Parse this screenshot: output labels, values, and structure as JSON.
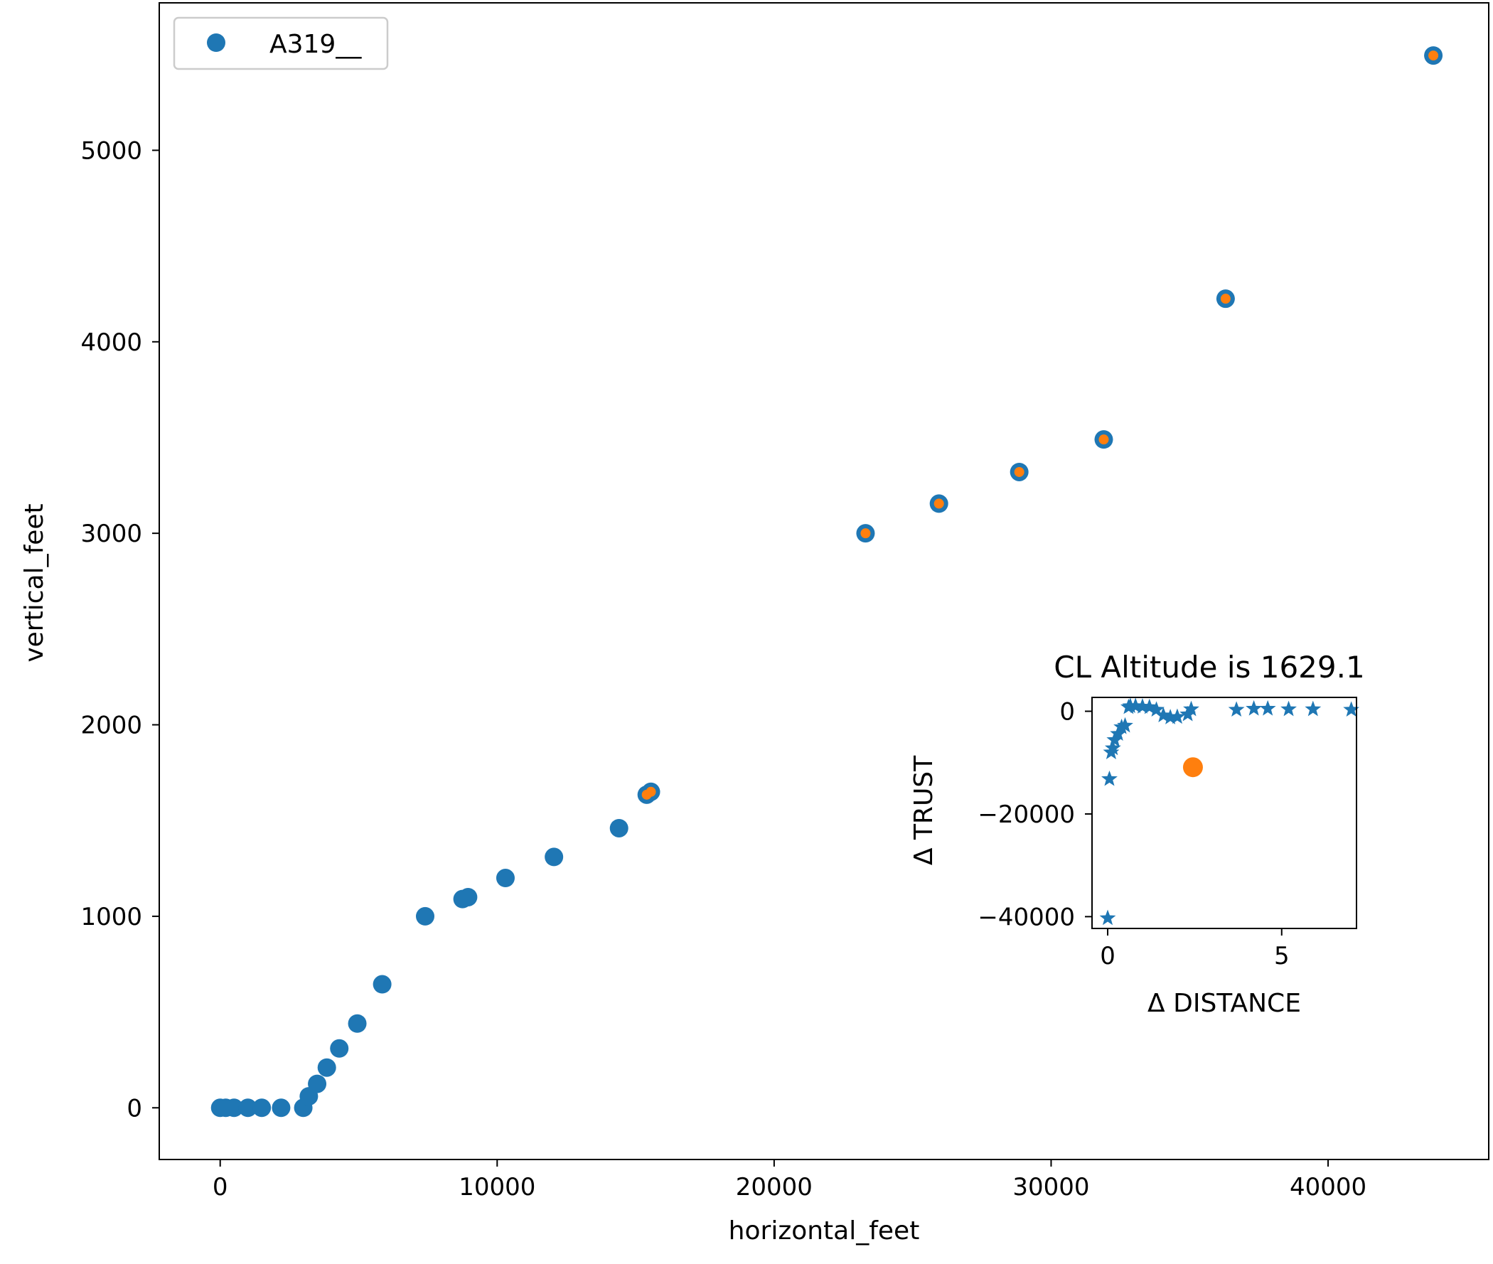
{
  "colors": {
    "series": "#1f77b4",
    "highlight": "#ff7f0e",
    "axis": "#000000",
    "legend_border": "#cccccc"
  },
  "chart_data": [
    {
      "type": "scatter",
      "xlabel": "horizontal_feet",
      "ylabel": "vertical_feet",
      "xlim": [
        -2200,
        45800
      ],
      "ylim": [
        -270,
        5770
      ],
      "xticks": [
        0,
        10000,
        20000,
        30000,
        40000
      ],
      "yticks": [
        0,
        1000,
        2000,
        3000,
        4000,
        5000
      ],
      "grid": false,
      "legend": {
        "location": "upper-left",
        "entries": [
          {
            "label": "A319__",
            "marker": "circle",
            "color": "#1f77b4"
          }
        ]
      },
      "series": [
        {
          "name": "A319__",
          "marker": "circle",
          "color": "#1f77b4",
          "x": [
            0,
            200,
            500,
            1000,
            1500,
            2200,
            3000,
            3200,
            3500,
            3850,
            4300,
            4950,
            5850,
            7400,
            8750,
            8950,
            10300,
            12050,
            14400,
            15400,
            15550,
            23300,
            25950,
            28850,
            31900,
            36300,
            43800
          ],
          "y": [
            0,
            0,
            0,
            0,
            0,
            0,
            0,
            60,
            125,
            210,
            310,
            440,
            645,
            1000,
            1090,
            1100,
            1200,
            1310,
            1460,
            1635,
            1650,
            3000,
            3155,
            3320,
            3490,
            4225,
            5495
          ]
        },
        {
          "marker": "circle-small",
          "color": "#ff7f0e",
          "x": [
            15400,
            15550,
            23300,
            25950,
            28850,
            31900,
            36300,
            43800
          ],
          "y": [
            1635,
            1650,
            3000,
            3155,
            3320,
            3490,
            4225,
            5495
          ]
        }
      ]
    },
    {
      "type": "scatter",
      "title": "CL Altitude is 1629.1",
      "xlabel": "Δ DISTANCE",
      "ylabel": "Δ TRUST",
      "xlim": [
        -0.45,
        7.15
      ],
      "ylim": [
        -42300,
        2700
      ],
      "xticks": [
        0,
        5
      ],
      "yticks": [
        0,
        -20000,
        -40000
      ],
      "ytick_labels": [
        "0",
        "−20000",
        "−40000"
      ],
      "grid": false,
      "series": [
        {
          "marker": "star",
          "color": "#1f77b4",
          "x": [
            0.0,
            0.05,
            0.1,
            0.15,
            0.2,
            0.3,
            0.4,
            0.5,
            0.6,
            0.65,
            0.8,
            1.0,
            1.2,
            1.4,
            1.6,
            1.8,
            2.0,
            2.3,
            2.4,
            3.7,
            4.2,
            4.6,
            5.2,
            5.9,
            7.0
          ],
          "y": [
            -40300,
            -13200,
            -8000,
            -7200,
            -5600,
            -4400,
            -3100,
            -2800,
            800,
            1000,
            1000,
            900,
            800,
            300,
            -800,
            -1200,
            -1100,
            -600,
            400,
            300,
            500,
            500,
            400,
            400,
            300
          ]
        },
        {
          "marker": "circle",
          "color": "#ff7f0e",
          "x": [
            2.45
          ],
          "y": [
            -10900
          ]
        }
      ]
    }
  ]
}
